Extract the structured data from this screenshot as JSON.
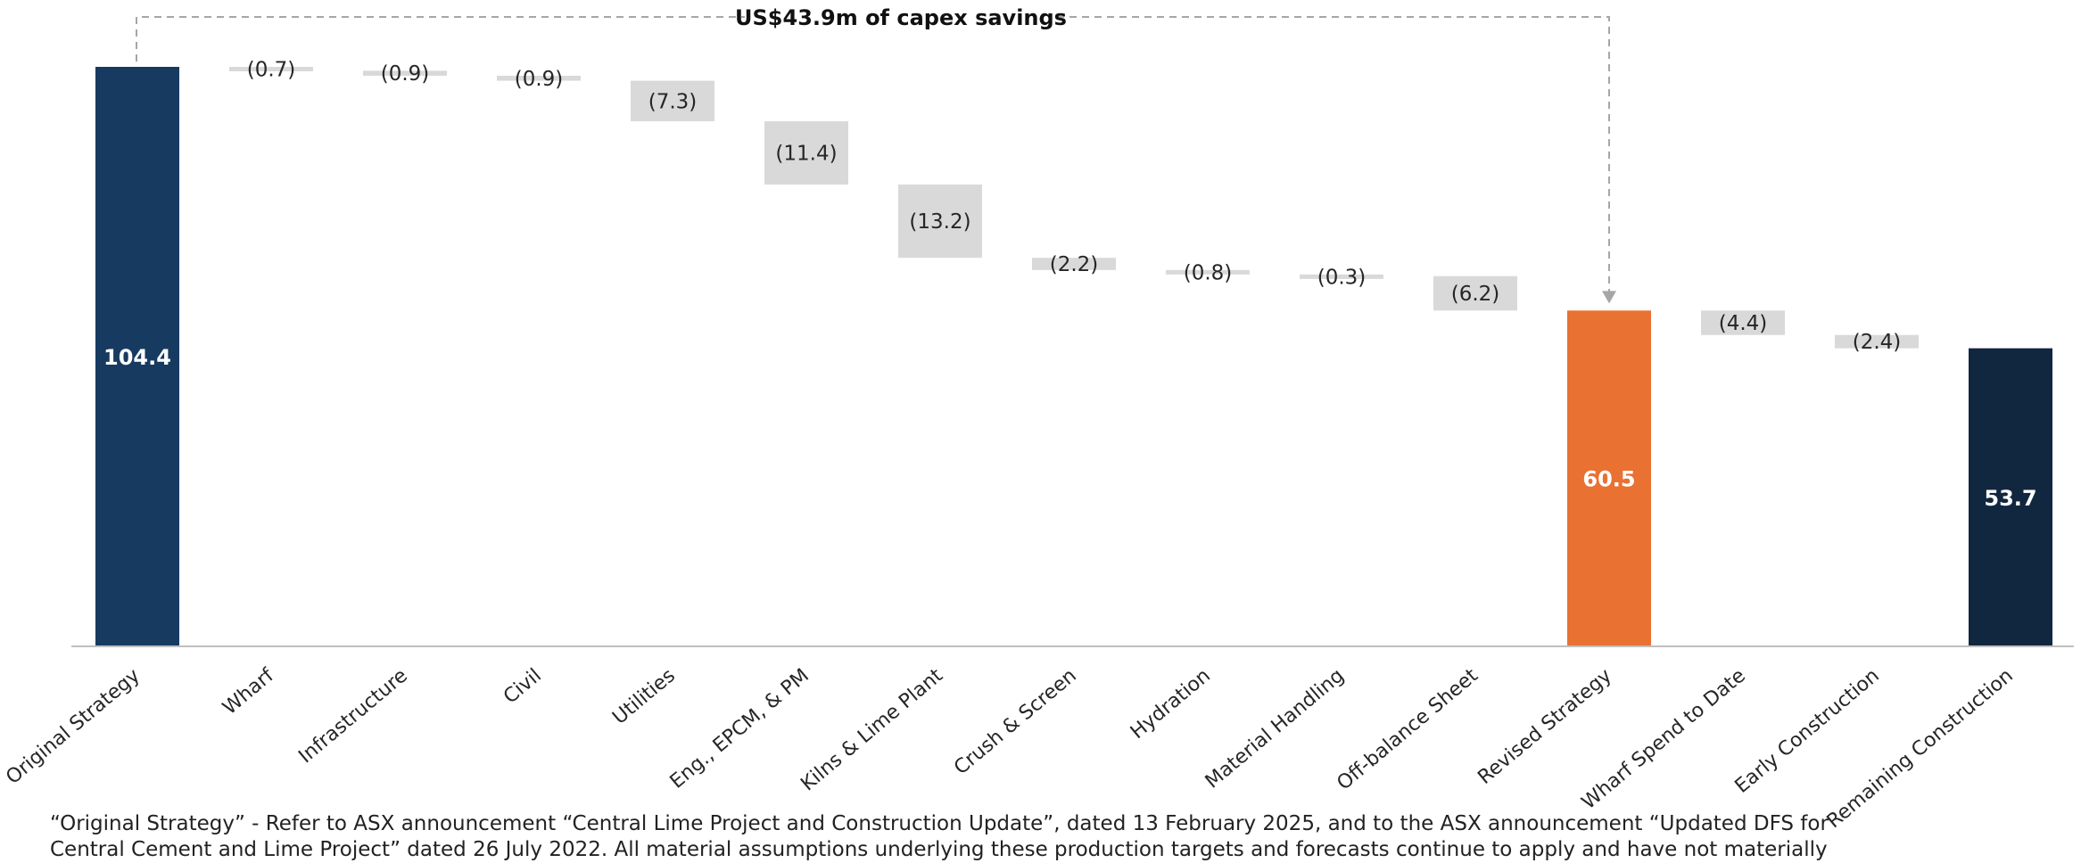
{
  "chart_data": {
    "type": "bar",
    "subtype": "waterfall",
    "categories": [
      "Original Strategy",
      "Wharf",
      "Infrastructure",
      "Civil",
      "Utilities",
      "Eng., EPCM, & PM",
      "Kilns & Lime Plant",
      "Crush & Screen",
      "Hydration",
      "Material Handling",
      "Off-balance Sheet",
      "Revised Strategy",
      "Wharf Spend to Date",
      "Early Construction",
      "Remaining Construction"
    ],
    "bars": [
      {
        "kind": "total",
        "value": 104.4,
        "label": "104.4",
        "color": "#173a61"
      },
      {
        "kind": "decrease",
        "value": 0.7,
        "label": "(0.7)",
        "color": "#d9d9d9"
      },
      {
        "kind": "decrease",
        "value": 0.9,
        "label": "(0.9)",
        "color": "#d9d9d9"
      },
      {
        "kind": "decrease",
        "value": 0.9,
        "label": "(0.9)",
        "color": "#d9d9d9"
      },
      {
        "kind": "decrease",
        "value": 7.3,
        "label": "(7.3)",
        "color": "#d9d9d9"
      },
      {
        "kind": "decrease",
        "value": 11.4,
        "label": "(11.4)",
        "color": "#d9d9d9"
      },
      {
        "kind": "decrease",
        "value": 13.2,
        "label": "(13.2)",
        "color": "#d9d9d9"
      },
      {
        "kind": "decrease",
        "value": 2.2,
        "label": "(2.2)",
        "color": "#d9d9d9"
      },
      {
        "kind": "decrease",
        "value": 0.8,
        "label": "(0.8)",
        "color": "#d9d9d9"
      },
      {
        "kind": "decrease",
        "value": 0.3,
        "label": "(0.3)",
        "color": "#d9d9d9"
      },
      {
        "kind": "decrease",
        "value": 6.2,
        "label": "(6.2)",
        "color": "#d9d9d9"
      },
      {
        "kind": "total",
        "value": 60.5,
        "label": "60.5",
        "color": "#e97132"
      },
      {
        "kind": "decrease",
        "value": 4.4,
        "label": "(4.4)",
        "color": "#d9d9d9"
      },
      {
        "kind": "decrease",
        "value": 2.4,
        "label": "(2.4)",
        "color": "#d9d9d9"
      },
      {
        "kind": "total",
        "value": 53.7,
        "label": "53.7",
        "color": "#11263f"
      }
    ],
    "annotation": "US$43.9m of capex savings",
    "annotation_span": [
      "Original Strategy",
      "Revised Strategy"
    ],
    "ylim": [
      0,
      104.4
    ],
    "grid": false,
    "xlabel": "",
    "ylabel": ""
  },
  "footnote": "“Original Strategy” - Refer to ASX announcement “Central Lime Project and Construction Update”, dated 13 February 2025, and to the ASX announcement “Updated DFS for Central Cement and Lime Project” dated 26 July 2022. All material assumptions underlying these production targets and forecasts continue to apply and have not materially"
}
